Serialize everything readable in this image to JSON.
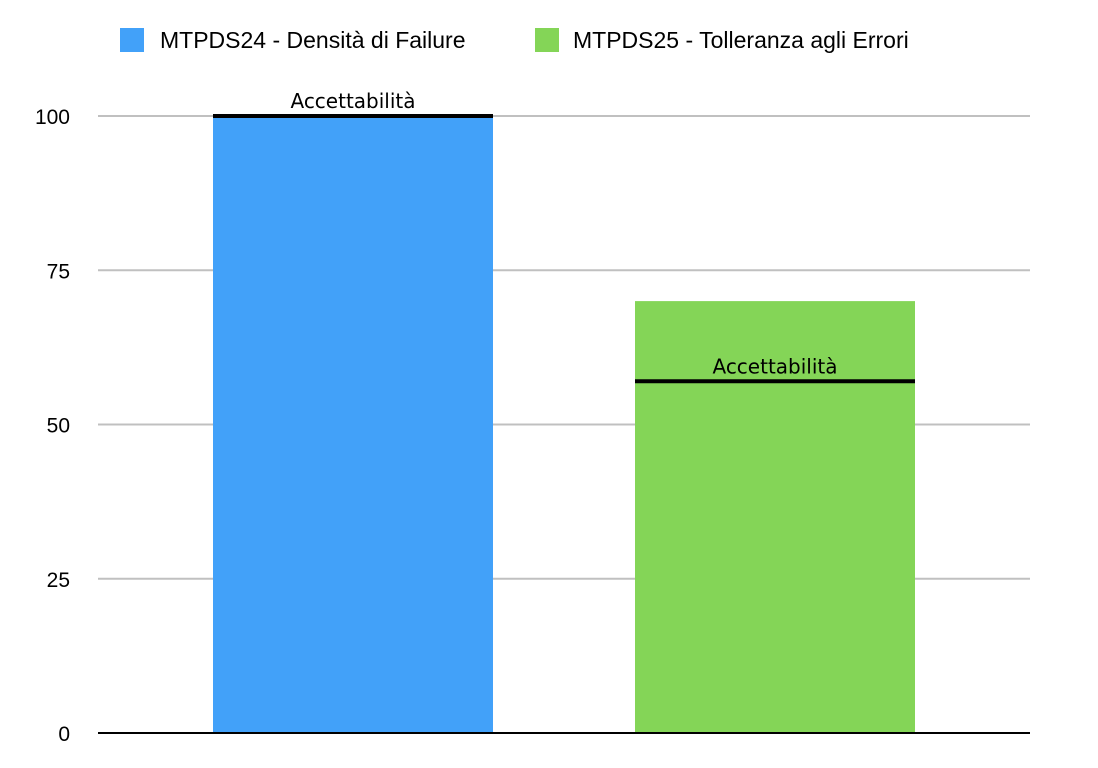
{
  "chart_data": {
    "type": "bar",
    "categories": [
      "MTPDS24",
      "MTPDS25"
    ],
    "series": [
      {
        "name": "MTPDS24 - Densità di Failure",
        "color": "#42a1f9",
        "values": [
          100,
          null
        ]
      },
      {
        "name": "MTPDS25 - Tolleranza agli Errori",
        "color": "#84d557",
        "values": [
          null,
          70
        ]
      }
    ],
    "annotations": [
      {
        "text": "Accettabilità",
        "category_index": 0,
        "value": 100
      },
      {
        "text": "Accettabilità",
        "category_index": 1,
        "value": 57
      }
    ],
    "ylim": [
      0,
      100
    ],
    "yticks": [
      "0",
      "25",
      "50",
      "75",
      "100"
    ],
    "title": "",
    "xlabel": "",
    "ylabel": "",
    "grid": true,
    "legend_position": "top"
  }
}
